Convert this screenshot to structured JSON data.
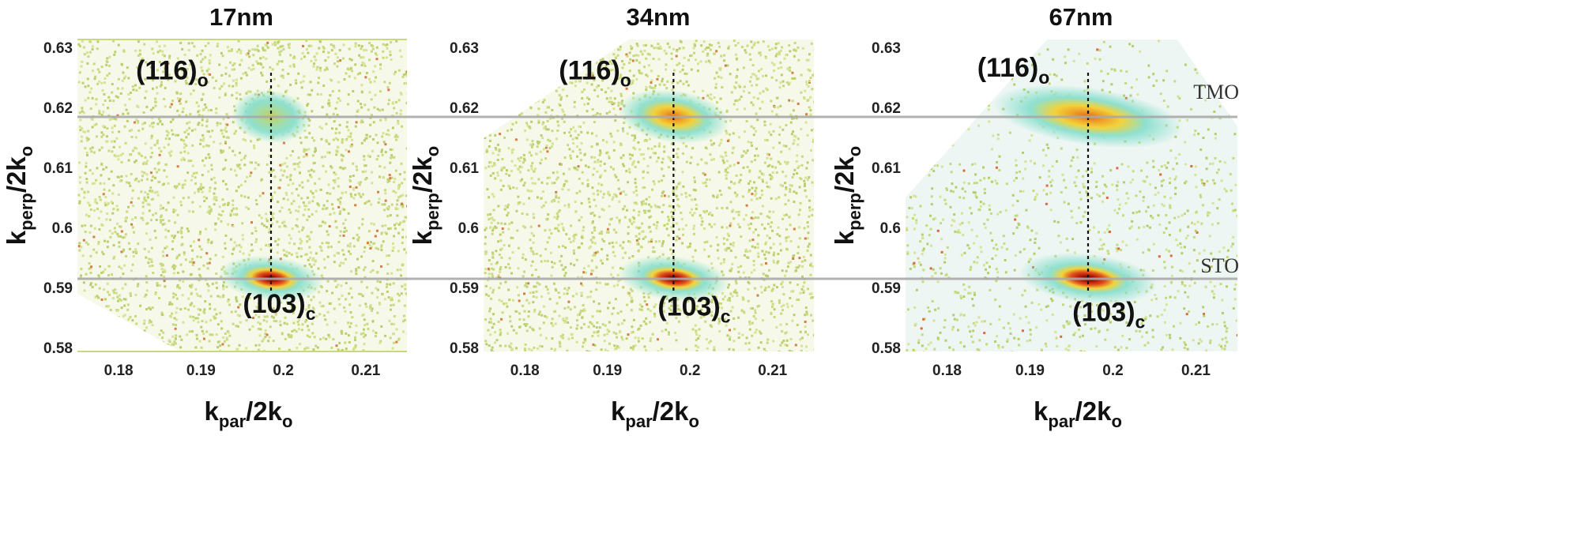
{
  "chart_data": [
    {
      "type": "heatmap",
      "title": "17nm",
      "xlabel": "k",
      "xlabel_sub": "par",
      "xlabel_tail": "/2k",
      "xlabel_tail_sub": "o",
      "ylabel": "k",
      "ylabel_sub": "perp",
      "ylabel_tail": "/2k",
      "ylabel_tail_sub": "o",
      "xlim": [
        0.175,
        0.215
      ],
      "ylim": [
        0.58,
        0.63
      ],
      "xticks": [
        {
          "v": 0.18,
          "label": "0.18"
        },
        {
          "v": 0.19,
          "label": "0.19"
        },
        {
          "v": 0.2,
          "label": "0.2"
        },
        {
          "v": 0.21,
          "label": "0.21"
        }
      ],
      "yticks": [
        {
          "v": 0.63,
          "label": "0.63"
        },
        {
          "v": 0.62,
          "label": "0.62"
        },
        {
          "v": 0.61,
          "label": "0.61"
        },
        {
          "v": 0.6,
          "label": "0.6"
        },
        {
          "v": 0.59,
          "label": "0.59"
        },
        {
          "v": 0.58,
          "label": "0.58"
        }
      ],
      "peaks": [
        {
          "label": "(116)",
          "sub": "o",
          "x": 0.1985,
          "y": 0.6185,
          "wx": 0.0024,
          "wy": 0.002,
          "strength": 0.5
        },
        {
          "label": "(103)",
          "sub": "c",
          "x": 0.1985,
          "y": 0.5915,
          "wx": 0.0032,
          "wy": 0.0017,
          "strength": 1.0
        }
      ],
      "vline_x": 0.1985,
      "hlines": [
        0.6185,
        0.5915
      ]
    },
    {
      "type": "heatmap",
      "title": "34nm",
      "xlabel": "k",
      "xlabel_sub": "par",
      "xlabel_tail": "/2k",
      "xlabel_tail_sub": "o",
      "ylabel": "k",
      "ylabel_sub": "perp",
      "ylabel_tail": "/2k",
      "ylabel_tail_sub": "o",
      "xlim": [
        0.175,
        0.215
      ],
      "ylim": [
        0.58,
        0.63
      ],
      "xticks": [
        {
          "v": 0.18,
          "label": "0.18"
        },
        {
          "v": 0.19,
          "label": "0.19"
        },
        {
          "v": 0.2,
          "label": "0.2"
        },
        {
          "v": 0.21,
          "label": "0.21"
        }
      ],
      "yticks": [
        {
          "v": 0.63,
          "label": "0.63"
        },
        {
          "v": 0.62,
          "label": "0.62"
        },
        {
          "v": 0.61,
          "label": "0.61"
        },
        {
          "v": 0.6,
          "label": "0.6"
        },
        {
          "v": 0.59,
          "label": "0.59"
        },
        {
          "v": 0.58,
          "label": "0.58"
        }
      ],
      "peaks": [
        {
          "label": "(116)",
          "sub": "o",
          "x": 0.198,
          "y": 0.6185,
          "wx": 0.0034,
          "wy": 0.002,
          "strength": 0.75
        },
        {
          "label": "(103)",
          "sub": "c",
          "x": 0.198,
          "y": 0.5915,
          "wx": 0.0034,
          "wy": 0.0017,
          "strength": 1.0
        }
      ],
      "vline_x": 0.198,
      "hlines": [
        0.6185,
        0.5915
      ]
    },
    {
      "type": "heatmap",
      "title": "67nm",
      "xlabel": "k",
      "xlabel_sub": "par",
      "xlabel_tail": "/2k",
      "xlabel_tail_sub": "o",
      "ylabel": "k",
      "ylabel_sub": "perp",
      "ylabel_tail": "/2k",
      "ylabel_tail_sub": "o",
      "xlim": [
        0.175,
        0.215
      ],
      "ylim": [
        0.58,
        0.63
      ],
      "xticks": [
        {
          "v": 0.18,
          "label": "0.18"
        },
        {
          "v": 0.19,
          "label": "0.19"
        },
        {
          "v": 0.2,
          "label": "0.2"
        },
        {
          "v": 0.21,
          "label": "0.21"
        }
      ],
      "yticks": [
        {
          "v": 0.63,
          "label": "0.63"
        },
        {
          "v": 0.62,
          "label": "0.62"
        },
        {
          "v": 0.61,
          "label": "0.61"
        },
        {
          "v": 0.6,
          "label": "0.6"
        },
        {
          "v": 0.59,
          "label": "0.59"
        },
        {
          "v": 0.58,
          "label": "0.58"
        }
      ],
      "peaks": [
        {
          "label": "(116)",
          "sub": "o",
          "x": 0.197,
          "y": 0.6185,
          "wx": 0.0058,
          "wy": 0.0022,
          "strength": 0.85
        },
        {
          "label": "(103)",
          "sub": "c",
          "x": 0.197,
          "y": 0.5915,
          "wx": 0.0042,
          "wy": 0.0019,
          "strength": 1.0
        }
      ],
      "vline_x": 0.197,
      "hlines": [
        0.6185,
        0.5915
      ],
      "layer_labels": [
        "TMO",
        "STO"
      ]
    }
  ],
  "colors": {
    "background_speckle": "#cfdc84",
    "low_intensity": "#8ee0cf",
    "mid_intensity": "#f2d33b",
    "high_intensity": "#e0521c",
    "peak_core": "#2a0700",
    "reference_line": "#a9a9a9"
  }
}
